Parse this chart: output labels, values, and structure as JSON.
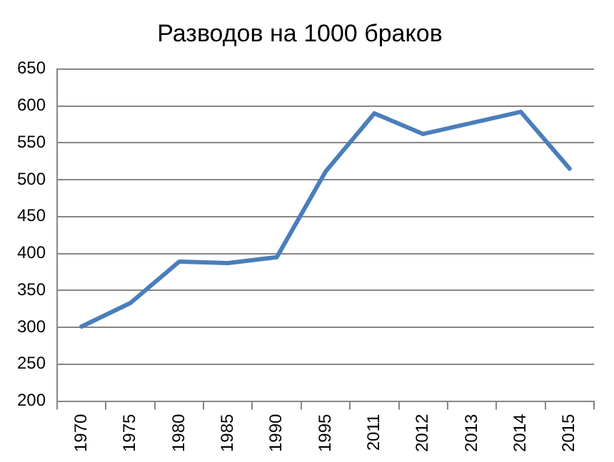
{
  "chart_data": {
    "type": "line",
    "title": "Разводов на 1000 браков",
    "categories": [
      "1970",
      "1975",
      "1980",
      "1985",
      "1990",
      "1995",
      "2011",
      "2012",
      "2013",
      "2014",
      "2015"
    ],
    "series": [
      {
        "color": "#4a7ebb",
        "values": [
          301,
          333,
          389,
          387,
          395,
          511,
          590,
          562,
          577,
          592,
          515
        ]
      }
    ],
    "ylim": [
      200,
      650
    ],
    "yticks": [
      200,
      250,
      300,
      350,
      400,
      450,
      500,
      550,
      600,
      650
    ],
    "grid": "y",
    "legend": false,
    "marker": "none",
    "line_style": "solid"
  }
}
